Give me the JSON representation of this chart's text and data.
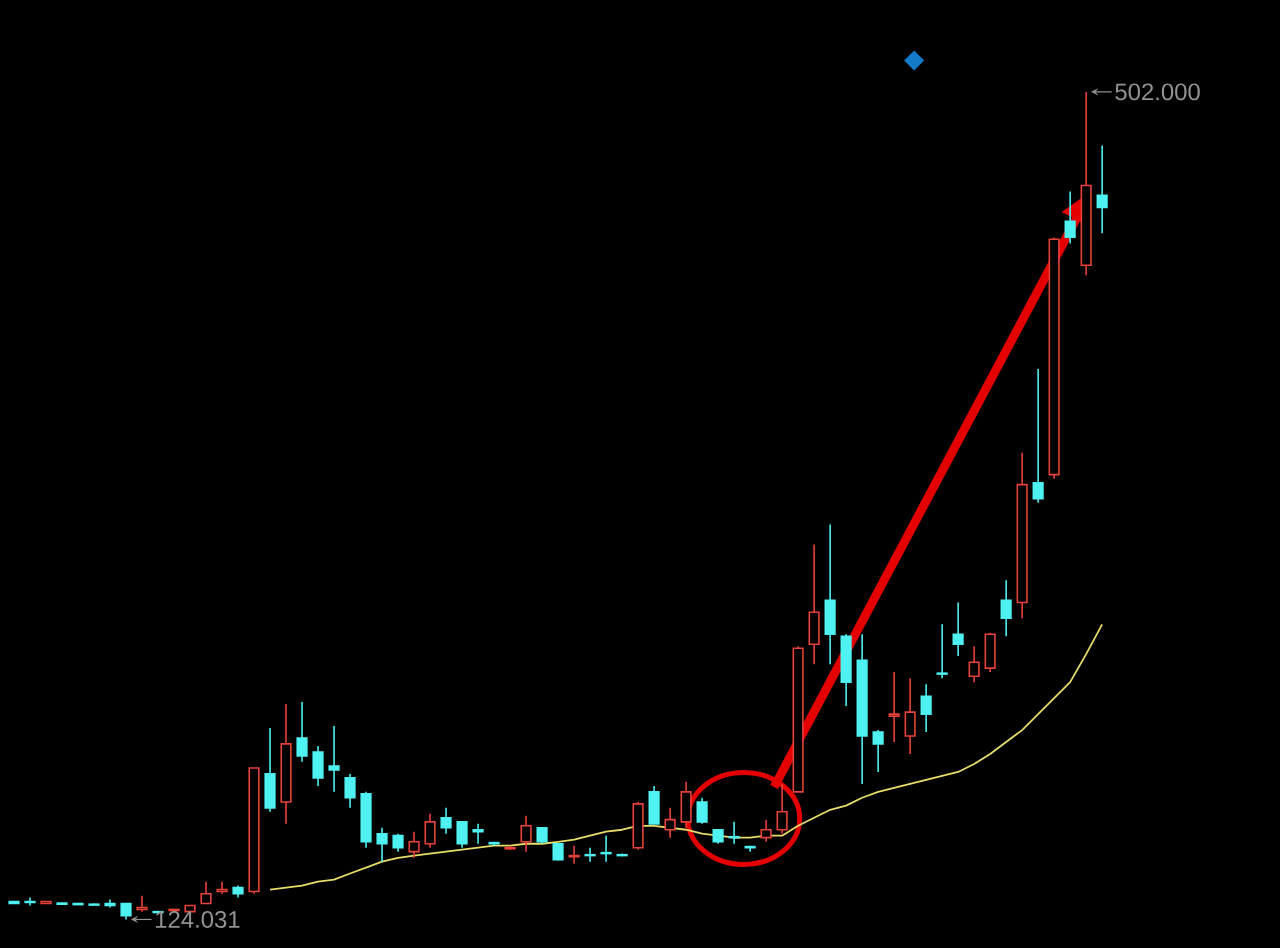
{
  "chart_data": {
    "type": "candlestick",
    "categories": [
      null,
      null,
      null,
      null,
      null,
      null,
      null,
      null,
      null,
      null,
      null,
      null,
      null,
      null,
      null,
      null,
      null,
      null,
      null,
      null,
      null,
      null,
      null,
      null,
      null,
      null,
      null,
      null,
      null,
      null,
      null,
      null,
      null,
      null,
      null,
      null,
      null,
      null,
      null,
      null,
      null,
      null,
      null,
      null,
      null,
      null,
      null,
      null,
      null,
      null,
      null,
      null,
      null,
      null,
      null,
      null,
      null,
      null,
      null,
      null,
      null,
      null,
      null,
      null,
      null,
      null,
      null,
      null,
      null
    ],
    "ohlc": [
      [
        132.2,
        132.2,
        131.3,
        131.3
      ],
      [
        132.2,
        134.0,
        130.4,
        131.8
      ],
      [
        131.3,
        132.2,
        131.3,
        132.2
      ],
      [
        131.5,
        131.8,
        131.0,
        131.0
      ],
      [
        131.3,
        131.6,
        130.8,
        130.8
      ],
      [
        131.0,
        131.3,
        130.6,
        130.6
      ],
      [
        131.3,
        133.1,
        129.5,
        130.4
      ],
      [
        131.3,
        131.3,
        124.031,
        125.8
      ],
      [
        128.6,
        134.9,
        127.6,
        129.5
      ],
      [
        127.6,
        127.6,
        126.7,
        127.2
      ],
      [
        128.1,
        128.6,
        127.6,
        128.6
      ],
      [
        127.6,
        130.4,
        127.6,
        130.4
      ],
      [
        131.3,
        141.3,
        131.3,
        135.8
      ],
      [
        136.8,
        141.3,
        135.8,
        137.7
      ],
      [
        138.6,
        139.5,
        134.0,
        135.8
      ],
      [
        136.8,
        193.2,
        135.8,
        193.2
      ],
      [
        190.5,
        211.5,
        173.2,
        175.0
      ],
      [
        177.7,
        222.4,
        167.7,
        204.2
      ],
      [
        206.9,
        223.3,
        196.0,
        198.7
      ],
      [
        200.5,
        203.3,
        185.0,
        188.7
      ],
      [
        194.1,
        212.4,
        182.3,
        192.3
      ],
      [
        188.7,
        190.5,
        175.0,
        179.6
      ],
      [
        181.4,
        182.3,
        156.8,
        159.5
      ],
      [
        163.2,
        165.9,
        150.4,
        158.6
      ],
      [
        162.3,
        163.2,
        155.0,
        156.8
      ],
      [
        155.0,
        164.1,
        152.2,
        159.5
      ],
      [
        158.6,
        172.3,
        156.8,
        168.6
      ],
      [
        170.5,
        175.0,
        163.2,
        165.9
      ],
      [
        168.6,
        168.6,
        156.8,
        158.6
      ],
      [
        165.0,
        167.7,
        158.6,
        164.1
      ],
      [
        159.1,
        159.5,
        157.7,
        158.6
      ],
      [
        156.3,
        157.7,
        155.9,
        156.8
      ],
      [
        159.5,
        171.4,
        155.0,
        166.8
      ],
      [
        165.9,
        165.9,
        158.6,
        159.5
      ],
      [
        158.6,
        158.6,
        151.0,
        151.3
      ],
      [
        152.7,
        157.7,
        149.5,
        153.2
      ],
      [
        153.6,
        156.8,
        150.4,
        153.2
      ],
      [
        154.5,
        162.3,
        150.4,
        154.1
      ],
      [
        153.6,
        154.1,
        152.9,
        153.2
      ],
      [
        156.8,
        177.7,
        155.9,
        176.8
      ],
      [
        182.3,
        185.0,
        167.7,
        167.7
      ],
      [
        165.0,
        175.0,
        161.4,
        169.6
      ],
      [
        168.6,
        186.9,
        165.9,
        182.3
      ],
      [
        177.7,
        179.6,
        167.7,
        168.6
      ],
      [
        165.0,
        165.0,
        158.6,
        159.5
      ],
      [
        161.8,
        168.6,
        158.6,
        161.4
      ],
      [
        157.3,
        157.7,
        155.0,
        156.8
      ],
      [
        161.4,
        169.6,
        159.5,
        165.0
      ],
      [
        165.0,
        185.9,
        163.2,
        173.2
      ],
      [
        182.3,
        248.8,
        182.3,
        247.9
      ],
      [
        249.7,
        295.3,
        240.6,
        264.3
      ],
      [
        269.8,
        304.4,
        240.6,
        254.3
      ],
      [
        253.4,
        254.3,
        221.5,
        232.4
      ],
      [
        242.4,
        254.3,
        185.9,
        207.8
      ],
      [
        209.6,
        210.5,
        191.4,
        204.2
      ],
      [
        216.9,
        237.0,
        205.1,
        217.8
      ],
      [
        207.8,
        234.2,
        199.6,
        218.7
      ],
      [
        226.0,
        231.5,
        209.6,
        217.8
      ],
      [
        236.5,
        258.8,
        234.2,
        236.1
      ],
      [
        254.3,
        268.8,
        244.3,
        249.7
      ],
      [
        235.1,
        248.8,
        232.4,
        241.5
      ],
      [
        238.8,
        255.0,
        237.0,
        254.3
      ],
      [
        269.8,
        278.9,
        253.4,
        261.6
      ],
      [
        268.8,
        337.2,
        261.6,
        322.6
      ],
      [
        323.5,
        375.4,
        314.4,
        316.2
      ],
      [
        327.2,
        435.5,
        325.3,
        434.7
      ],
      [
        442.9,
        456.5,
        432.8,
        435.6
      ],
      [
        422.8,
        502,
        418.3,
        459.2
      ],
      [
        454.7,
        477.5,
        437.4,
        449.2
      ]
    ],
    "colors": [
      "#4ef2f2",
      "#4ef2f2",
      "#e8423a",
      "#4ef2f2",
      "#4ef2f2",
      "#4ef2f2",
      "#4ef2f2",
      "#4ef2f2",
      "#e8423a",
      "#4ef2f2",
      "#e8423a",
      "#e8423a",
      "#e8423a",
      "#e8423a",
      "#4ef2f2",
      "#e8423a",
      "#4ef2f2",
      "#e8423a",
      "#4ef2f2",
      "#4ef2f2",
      "#4ef2f2",
      "#4ef2f2",
      "#4ef2f2",
      "#4ef2f2",
      "#4ef2f2",
      "#e8423a",
      "#e8423a",
      "#4ef2f2",
      "#4ef2f2",
      "#4ef2f2",
      "#4ef2f2",
      "#e8423a",
      "#e8423a",
      "#4ef2f2",
      "#4ef2f2",
      "#e8423a",
      "#4ef2f2",
      "#4ef2f2",
      "#4ef2f2",
      "#e8423a",
      "#4ef2f2",
      "#e8423a",
      "#e8423a",
      "#4ef2f2",
      "#4ef2f2",
      "#4ef2f2",
      "#4ef2f2",
      "#e8423a",
      "#e8423a",
      "#e8423a",
      "#e8423a",
      "#4ef2f2",
      "#4ef2f2",
      "#4ef2f2",
      "#4ef2f2",
      "#e8423a",
      "#e8423a",
      "#4ef2f2",
      "#4ef2f2",
      "#4ef2f2",
      "#e8423a",
      "#e8423a",
      "#4ef2f2",
      "#e8423a",
      "#4ef2f2",
      "#e8423a",
      "#4ef2f2",
      "#e8423a",
      "#4ef2f2"
    ],
    "series": [
      {
        "type": "line",
        "color": "#e8dc6a",
        "values": [
          null,
          null,
          null,
          null,
          null,
          null,
          null,
          null,
          null,
          null,
          null,
          null,
          null,
          null,
          null,
          null,
          137.7,
          138.6,
          139.5,
          141.3,
          142.2,
          145.0,
          147.7,
          150.4,
          152.2,
          153.2,
          154.1,
          155.0,
          155.9,
          156.8,
          157.7,
          157.7,
          158.6,
          158.6,
          159.5,
          160.5,
          162.3,
          164.1,
          165.0,
          166.8,
          166.8,
          165.9,
          165.0,
          163.2,
          162.3,
          161.4,
          161.4,
          162.3,
          162.3,
          166.8,
          170.5,
          174.1,
          176.0,
          179.6,
          182.3,
          184.1,
          186.0,
          187.8,
          189.6,
          191.4,
          195.0,
          199.6,
          205.1,
          210.5,
          217.8,
          225.1,
          232.4,
          245.2,
          258.8
        ]
      }
    ],
    "annotations": [
      "502.000",
      "124.031"
    ]
  }
}
